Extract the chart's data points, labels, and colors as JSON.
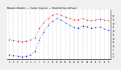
{
  "title": "Milwaukee Weather  —  Outdoor Temp (vs)  —  Wind Chill (Last 24 Hours)",
  "x_labels": [
    "0",
    "1",
    "2",
    "3",
    "4",
    "5",
    "6",
    "7",
    "8",
    "9",
    "10",
    "11",
    "12",
    "13",
    "14",
    "15",
    "16",
    "17",
    "18",
    "19",
    "20",
    "21",
    "22",
    "23"
  ],
  "outdoor_temp": [
    18,
    17,
    16,
    15,
    16,
    18,
    20,
    33,
    40,
    46,
    50,
    52,
    50,
    48,
    46,
    44,
    44,
    46,
    44,
    43,
    44,
    45,
    44,
    43
  ],
  "wind_chill": [
    -2,
    -3,
    -4,
    -5,
    -4,
    -2,
    2,
    18,
    28,
    37,
    42,
    46,
    44,
    40,
    37,
    34,
    33,
    36,
    35,
    33,
    34,
    35,
    32,
    30
  ],
  "outdoor_color": "#cc0000",
  "windchill_color": "#0000cc",
  "ylim_min": -8,
  "ylim_max": 58,
  "yticks": [
    50,
    45,
    40,
    35,
    30,
    25,
    20,
    15,
    10,
    5,
    0,
    -4
  ],
  "ytick_labels": [
    "50",
    "45",
    "40",
    "35",
    "30",
    "25",
    "20",
    "15",
    "10",
    "5",
    "0",
    "-4"
  ],
  "background_color": "#f0f0f0",
  "plot_bg": "#ffffff",
  "grid_color": "#888888"
}
